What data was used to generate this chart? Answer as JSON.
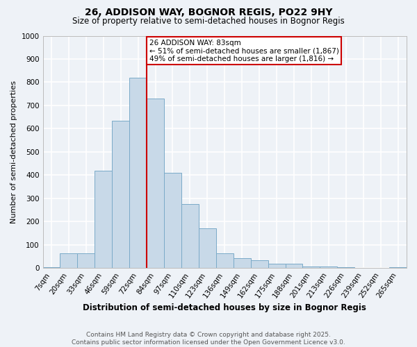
{
  "title": "26, ADDISON WAY, BOGNOR REGIS, PO22 9HY",
  "subtitle": "Size of property relative to semi-detached houses in Bognor Regis",
  "xlabel": "Distribution of semi-detached houses by size in Bognor Regis",
  "ylabel": "Number of semi-detached properties",
  "categories": [
    "7sqm",
    "20sqm",
    "33sqm",
    "46sqm",
    "59sqm",
    "72sqm",
    "84sqm",
    "97sqm",
    "110sqm",
    "123sqm",
    "136sqm",
    "149sqm",
    "162sqm",
    "175sqm",
    "188sqm",
    "201sqm",
    "213sqm",
    "226sqm",
    "239sqm",
    "252sqm",
    "265sqm"
  ],
  "values": [
    5,
    65,
    65,
    420,
    635,
    820,
    730,
    410,
    275,
    170,
    65,
    42,
    33,
    18,
    18,
    8,
    7,
    3,
    2,
    1,
    5
  ],
  "bar_color": "#c8d9e8",
  "bar_edge_color": "#7aaac8",
  "vline_pos": 5.5,
  "vline_color": "#cc0000",
  "annotation_text": "26 ADDISON WAY: 83sqm\n← 51% of semi-detached houses are smaller (1,867)\n49% of semi-detached houses are larger (1,816) →",
  "annotation_box_color": "#ffffff",
  "annotation_box_edge": "#cc0000",
  "ylim": [
    0,
    1000
  ],
  "yticks": [
    0,
    100,
    200,
    300,
    400,
    500,
    600,
    700,
    800,
    900,
    1000
  ],
  "footer": "Contains HM Land Registry data © Crown copyright and database right 2025.\nContains public sector information licensed under the Open Government Licence v3.0.",
  "bg_color": "#eef2f7",
  "grid_color": "#ffffff",
  "title_fontsize": 10,
  "subtitle_fontsize": 8.5,
  "xlabel_fontsize": 8.5,
  "ylabel_fontsize": 8,
  "tick_fontsize": 7.5,
  "footer_fontsize": 6.5,
  "annot_fontsize": 7.5
}
